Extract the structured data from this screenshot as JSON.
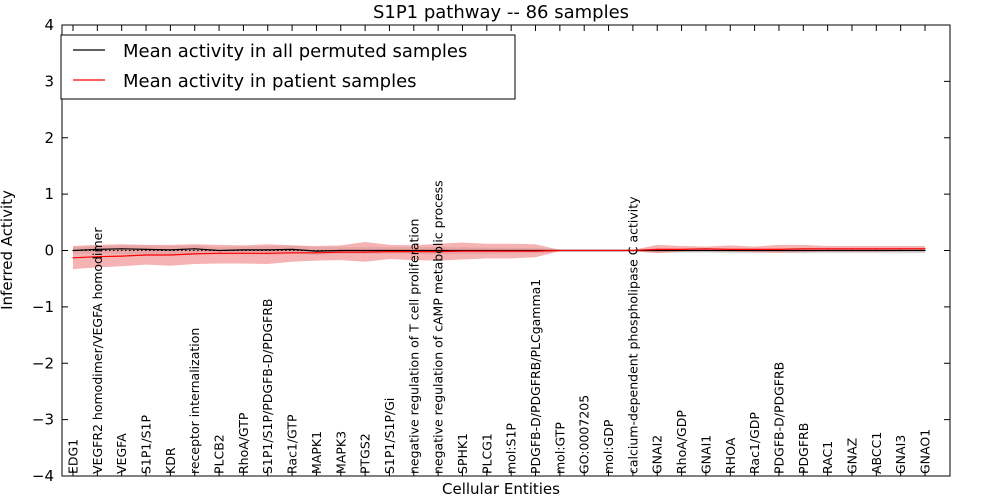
{
  "chart_data": {
    "type": "line",
    "title": "S1P1 pathway -- 86 samples",
    "xlabel": "Cellular Entities",
    "ylabel": "Inferred Activity",
    "ylim": [
      -4,
      4
    ],
    "yticks": [
      -4,
      -3,
      -2,
      -1,
      0,
      1,
      2,
      3,
      4
    ],
    "ytick_labels": [
      "−4",
      "−3",
      "−2",
      "−1",
      "0",
      "1",
      "2",
      "3",
      "4"
    ],
    "legend_position": "upper-left",
    "categories": [
      "EDG1",
      "VEGFR2 homodimer/VEGFA homodimer",
      "VEGFA",
      "S1P1/S1P",
      "KDR",
      "receptor internalization",
      "PLCB2",
      "RhoA/GTP",
      "S1P1/S1P/PDGFB-D/PDGFRB",
      "Rac1/GTP",
      "MAPK1",
      "MAPK3",
      "PTGS2",
      "S1P1/S1P/Gi",
      "negative regulation of T cell proliferation",
      "negative regulation of cAMP metabolic process",
      "SPHK1",
      "PLCG1",
      "mol:S1P",
      "PDGFB-D/PDGFRB/PLCgamma1",
      "mol:GTP",
      "GO:0007205",
      "mol:GDP",
      "calcium-dependent phospholipase C activity",
      "GNAI2",
      "RhoA/GDP",
      "GNAI1",
      "RHOA",
      "Rac1/GDP",
      "PDGFB-D/PDGFRB",
      "PDGFRB",
      "RAC1",
      "GNAZ",
      "ABCC1",
      "GNAI3",
      "GNAO1"
    ],
    "series": [
      {
        "name": "Mean activity in all permuted samples",
        "color": "#000000",
        "band_color": "#bfbfbf",
        "values": [
          0.0,
          0.02,
          0.03,
          0.02,
          0.01,
          0.03,
          0.0,
          0.01,
          0.01,
          0.02,
          -0.01,
          0.0,
          0.0,
          0.0,
          0.0,
          0.0,
          0.0,
          0.0,
          0.0,
          0.0,
          0.0,
          0.0,
          0.0,
          0.0,
          0.0,
          0.0,
          0.0,
          0.0,
          0.0,
          0.0,
          0.0,
          0.0,
          0.0,
          0.0,
          0.0,
          0.0
        ],
        "band_lower": [
          -0.06,
          -0.05,
          -0.06,
          -0.07,
          -0.07,
          -0.05,
          -0.07,
          -0.07,
          -0.08,
          -0.06,
          -0.08,
          -0.06,
          -0.06,
          -0.06,
          -0.06,
          -0.07,
          -0.06,
          -0.06,
          -0.05,
          -0.05,
          -0.02,
          -0.02,
          -0.02,
          -0.02,
          -0.04,
          -0.04,
          -0.04,
          -0.05,
          -0.05,
          -0.04,
          -0.05,
          -0.05,
          -0.05,
          -0.05,
          -0.05,
          -0.05
        ],
        "band_upper": [
          0.06,
          0.08,
          0.09,
          0.09,
          0.08,
          0.09,
          0.06,
          0.07,
          0.08,
          0.09,
          0.06,
          0.06,
          0.06,
          0.06,
          0.06,
          0.06,
          0.06,
          0.05,
          0.05,
          0.05,
          0.02,
          0.02,
          0.02,
          0.02,
          0.04,
          0.04,
          0.04,
          0.04,
          0.04,
          0.04,
          0.05,
          0.05,
          0.05,
          0.05,
          0.05,
          0.05
        ]
      },
      {
        "name": "Mean activity in patient samples",
        "color": "#ff0000",
        "band_color": "#f08080",
        "values": [
          -0.13,
          -0.11,
          -0.1,
          -0.08,
          -0.08,
          -0.06,
          -0.05,
          -0.05,
          -0.05,
          -0.04,
          -0.04,
          -0.03,
          -0.03,
          -0.02,
          -0.02,
          -0.02,
          -0.01,
          -0.01,
          -0.01,
          -0.01,
          0.0,
          0.0,
          0.0,
          0.0,
          0.02,
          0.02,
          0.03,
          0.02,
          0.02,
          0.02,
          0.03,
          0.03,
          0.03,
          0.03,
          0.03,
          0.03
        ],
        "band_lower": [
          -0.33,
          -0.3,
          -0.28,
          -0.25,
          -0.27,
          -0.24,
          -0.23,
          -0.23,
          -0.24,
          -0.2,
          -0.18,
          -0.17,
          -0.2,
          -0.15,
          -0.17,
          -0.18,
          -0.16,
          -0.14,
          -0.14,
          -0.12,
          -0.01,
          -0.01,
          -0.01,
          -0.01,
          -0.05,
          -0.02,
          -0.01,
          -0.02,
          -0.03,
          -0.04,
          -0.03,
          -0.02,
          -0.02,
          -0.02,
          -0.01,
          -0.01
        ],
        "band_upper": [
          0.08,
          0.1,
          0.11,
          0.1,
          0.1,
          0.11,
          0.1,
          0.09,
          0.11,
          0.09,
          0.08,
          0.09,
          0.15,
          0.1,
          0.09,
          0.12,
          0.14,
          0.12,
          0.12,
          0.11,
          0.01,
          0.01,
          0.01,
          0.01,
          0.1,
          0.08,
          0.07,
          0.09,
          0.07,
          0.1,
          0.1,
          0.08,
          0.08,
          0.08,
          0.08,
          0.08
        ]
      }
    ]
  }
}
